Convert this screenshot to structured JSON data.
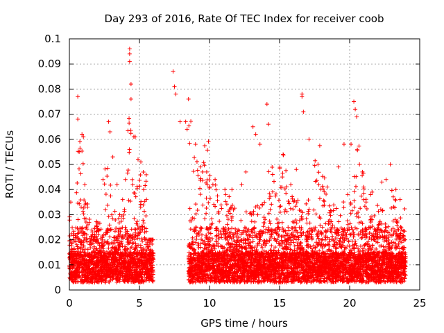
{
  "chart_data": {
    "type": "scatter",
    "title": "Day 293 of 2016, Rate Of TEC Index for receiver coob",
    "xlabel": "GPS time / hours",
    "ylabel": "ROTI / TECUs",
    "xlim": [
      0,
      25
    ],
    "ylim": [
      0,
      0.1
    ],
    "x_ticks": [
      0,
      5,
      10,
      15,
      20,
      25
    ],
    "x_tick_labels": [
      "0",
      "5",
      "10",
      "15",
      "20",
      "25"
    ],
    "y_ticks": [
      0,
      0.01,
      0.02,
      0.03,
      0.04,
      0.05,
      0.06,
      0.07,
      0.08,
      0.09,
      0.1
    ],
    "y_tick_labels": [
      "0",
      "0.01",
      "0.02",
      "0.03",
      "0.04",
      "0.05",
      "0.06",
      "0.07",
      "0.08",
      "0.09",
      "0.1"
    ],
    "grid": true,
    "marker": "+",
    "marker_color": "#ff0000",
    "series": [
      {
        "name": "ROTI",
        "x": [
          0.1,
          0.6,
          0.6,
          0.7,
          0.9,
          1.0,
          1.1,
          1.3,
          2.4,
          2.8,
          2.9,
          3.1,
          3.4,
          3.8,
          4.0,
          4.3,
          4.3,
          4.3,
          4.4,
          4.4,
          4.6,
          4.7,
          4.9,
          5.1,
          5.3,
          5.5,
          5.8,
          7.4,
          7.5,
          7.6,
          7.9,
          8.3,
          8.4,
          8.5,
          9.0,
          9.5,
          9.8,
          10.4,
          11.1,
          11.6,
          12.3,
          12.6,
          13.1,
          13.3,
          13.6,
          14.1,
          14.2,
          14.5,
          15.2,
          15.8,
          16.2,
          16.6,
          16.6,
          16.7,
          17.1,
          17.8,
          18.4,
          19.2,
          19.6,
          20.1,
          20.3,
          20.4,
          20.5,
          20.7,
          21.0,
          21.6,
          22.3,
          22.6,
          22.9,
          23.3,
          23.6
        ],
        "y": [
          0.035,
          0.077,
          0.068,
          0.055,
          0.062,
          0.061,
          0.042,
          0.033,
          0.044,
          0.067,
          0.063,
          0.053,
          0.042,
          0.036,
          0.044,
          0.096,
          0.094,
          0.091,
          0.082,
          0.076,
          0.061,
          0.061,
          0.052,
          0.051,
          0.04,
          0.036,
          0.02,
          0.087,
          0.081,
          0.078,
          0.067,
          0.067,
          0.064,
          0.076,
          0.058,
          0.047,
          0.047,
          0.044,
          0.04,
          0.04,
          0.042,
          0.047,
          0.065,
          0.062,
          0.058,
          0.074,
          0.066,
          0.046,
          0.045,
          0.042,
          0.048,
          0.078,
          0.077,
          0.071,
          0.06,
          0.042,
          0.041,
          0.049,
          0.058,
          0.058,
          0.075,
          0.072,
          0.069,
          0.05,
          0.041,
          0.039,
          0.043,
          0.044,
          0.05,
          0.04,
          0.036
        ],
        "hour_max": [
          0.035,
          0.077,
          0.045,
          0.034,
          0.033,
          0.067,
          0.04,
          0.039,
          0.096,
          0.053,
          0.062,
          0.02,
          0.0,
          0.0,
          0.0,
          0.0,
          0.0,
          0.087,
          0.067,
          0.076,
          0.058,
          0.047,
          0.047,
          0.044,
          0.04,
          0.04,
          0.042,
          0.047,
          0.065,
          0.058,
          0.074,
          0.046,
          0.045,
          0.042,
          0.048,
          0.078,
          0.06,
          0.042,
          0.041,
          0.049,
          0.058,
          0.075,
          0.05,
          0.041,
          0.039,
          0.044,
          0.05,
          0.04,
          0.036
        ]
      }
    ]
  }
}
